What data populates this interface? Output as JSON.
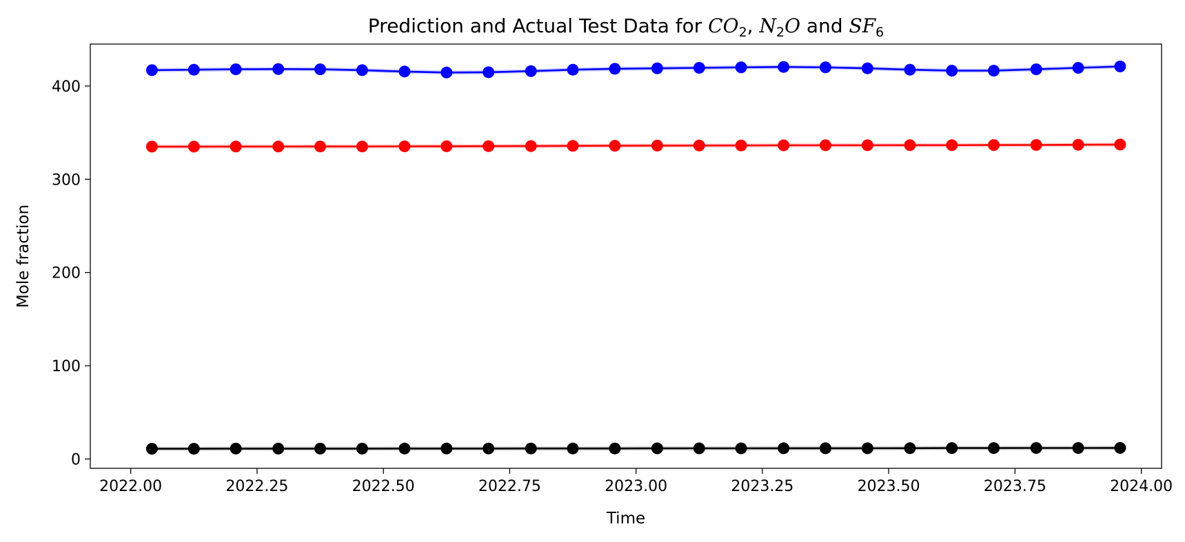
{
  "chart_data": {
    "type": "line",
    "title": {
      "prefix": "Prediction and Actual Test Data for ",
      "co2": "CO",
      "co2_sub": "2",
      "sep1": ", ",
      "n2o_a": "N",
      "n2o_sub": "2",
      "n2o_b": "O",
      "sep2": " and ",
      "sf6": "SF",
      "sf6_sub": "6"
    },
    "xlabel": "Time",
    "ylabel": "Mole fraction",
    "xlim": [
      2021.92,
      2024.04
    ],
    "ylim": [
      -10,
      445
    ],
    "xticks": [
      2022.0,
      2022.25,
      2022.5,
      2022.75,
      2023.0,
      2023.25,
      2023.5,
      2023.75,
      2024.0
    ],
    "xtick_labels": [
      "2022.00",
      "2022.25",
      "2022.50",
      "2022.75",
      "2023.00",
      "2023.25",
      "2023.50",
      "2023.75",
      "2024.00"
    ],
    "yticks": [
      0,
      100,
      200,
      300,
      400
    ],
    "ytick_labels": [
      "0",
      "100",
      "200",
      "300",
      "400"
    ],
    "grid": false,
    "x": [
      2022.042,
      2022.125,
      2022.208,
      2022.292,
      2022.375,
      2022.458,
      2022.542,
      2022.625,
      2022.708,
      2022.792,
      2022.875,
      2022.958,
      2023.042,
      2023.125,
      2023.208,
      2023.292,
      2023.375,
      2023.458,
      2023.542,
      2023.625,
      2023.708,
      2023.792,
      2023.875,
      2023.958
    ],
    "series": [
      {
        "color": "#0000ff",
        "values": [
          417.0,
          417.5,
          418.0,
          418.2,
          418.0,
          417.0,
          415.5,
          414.5,
          414.8,
          416.0,
          417.5,
          418.5,
          419.0,
          419.5,
          420.0,
          420.5,
          420.0,
          419.0,
          417.5,
          416.5,
          416.5,
          418.0,
          419.5,
          421.0
        ]
      },
      {
        "color": "#ff0000",
        "values": [
          335.0,
          335.0,
          335.1,
          335.1,
          335.2,
          335.2,
          335.3,
          335.4,
          335.5,
          335.6,
          335.8,
          336.0,
          336.1,
          336.2,
          336.3,
          336.4,
          336.5,
          336.5,
          336.6,
          336.6,
          336.7,
          336.8,
          337.0,
          337.2
        ]
      },
      {
        "color": "#000000",
        "values": [
          11.0,
          11.0,
          11.1,
          11.1,
          11.1,
          11.1,
          11.2,
          11.2,
          11.2,
          11.3,
          11.3,
          11.3,
          11.4,
          11.4,
          11.4,
          11.5,
          11.5,
          11.5,
          11.6,
          11.7,
          11.7,
          11.8,
          11.8,
          11.9
        ]
      }
    ]
  }
}
